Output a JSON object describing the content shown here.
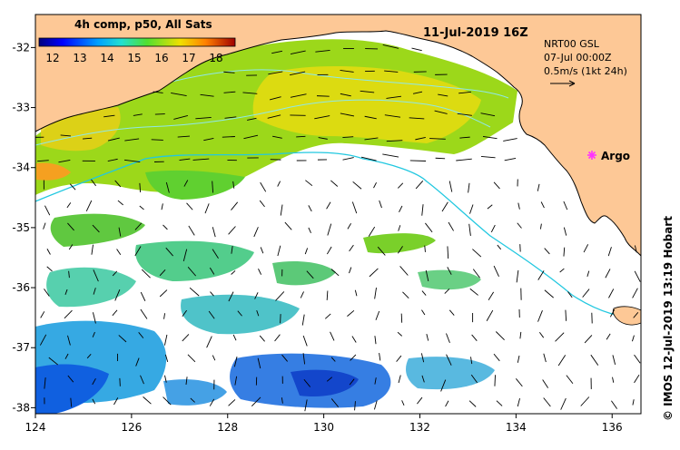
{
  "colorbar": {
    "title": "4h comp, p50, All Sats",
    "ticks": [
      "12",
      "13",
      "14",
      "15",
      "16",
      "17",
      "18"
    ],
    "range": [
      11.5,
      18.7
    ]
  },
  "header": {
    "datetime": "11-Jul-2019 16Z"
  },
  "current_info": {
    "line1": "NRT00 GSL",
    "line2": "07-Jul 00:00Z",
    "scale": "0.5m/s (1kt 24h)"
  },
  "argo": {
    "label": "Argo",
    "color": "#ff33ff"
  },
  "credit": "© IMOS 12-Jul-2019 13:19 Hobart",
  "axes": {
    "lon_ticks": [
      "124",
      "126",
      "128",
      "130",
      "132",
      "134",
      "136"
    ],
    "lat_ticks": [
      "-32",
      "-33",
      "-34",
      "-35",
      "-36",
      "-37",
      "-38"
    ],
    "lon_range": [
      124,
      136.6
    ],
    "lat_range": [
      -38.1,
      -31.45
    ]
  },
  "colors": {
    "land": "#fdc896",
    "ocean": "#ffffff",
    "contour": "#8fe8e8",
    "shelf_edge": "#22c8e0"
  }
}
